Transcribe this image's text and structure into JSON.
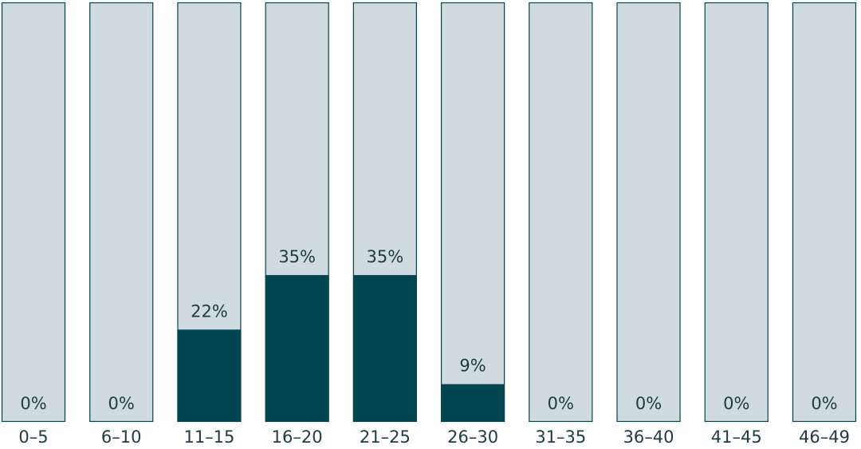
{
  "chart_data": {
    "type": "bar",
    "categories": [
      "0–5",
      "6–10",
      "11–15",
      "16–20",
      "21–25",
      "26–30",
      "31–35",
      "36–40",
      "41–45",
      "46–49"
    ],
    "values": [
      0,
      0,
      22,
      35,
      35,
      9,
      0,
      0,
      0,
      0
    ],
    "value_labels": [
      "0%",
      "0%",
      "22%",
      "35%",
      "35%",
      "9%",
      "0%",
      "0%",
      "0%",
      "0%"
    ],
    "color": "#00454f",
    "track_color": "#cfdbdf",
    "ylim": [
      0,
      100
    ]
  }
}
